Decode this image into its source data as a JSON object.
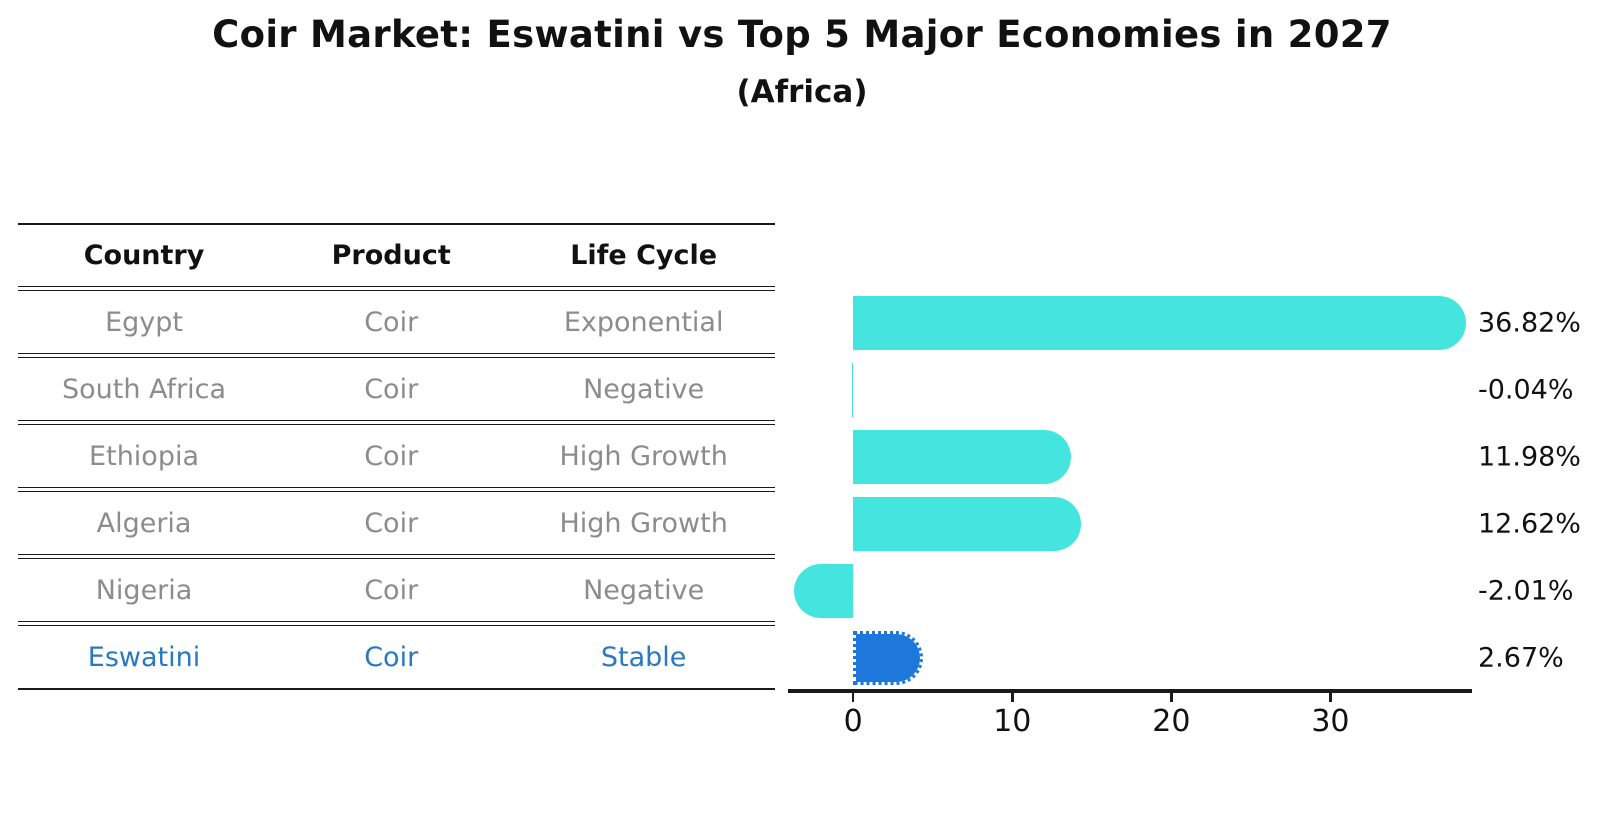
{
  "header": {
    "title": "Coir Market: Eswatini vs Top 5 Major Economies in 2027",
    "subtitle": "(Africa)"
  },
  "table": {
    "headers": [
      "Country",
      "Product",
      "Life Cycle"
    ],
    "rows": [
      {
        "country": "Egypt",
        "product": "Coir",
        "life_cycle": "Exponential",
        "highlight": false
      },
      {
        "country": "South Africa",
        "product": "Coir",
        "life_cycle": "Negative",
        "highlight": false
      },
      {
        "country": "Ethiopia",
        "product": "Coir",
        "life_cycle": "High Growth",
        "highlight": false
      },
      {
        "country": "Algeria",
        "product": "Coir",
        "life_cycle": "High Growth",
        "highlight": false
      },
      {
        "country": "Nigeria",
        "product": "Coir",
        "life_cycle": "Negative",
        "highlight": false
      },
      {
        "country": "Eswatini",
        "product": "Coir",
        "life_cycle": "Stable",
        "highlight": true
      }
    ]
  },
  "chart_data": {
    "type": "bar",
    "orientation": "horizontal",
    "title": "Coir Market: Eswatini vs Top 5 Major Economies in 2027",
    "subtitle": "(Africa)",
    "categories": [
      "Egypt",
      "South Africa",
      "Ethiopia",
      "Algeria",
      "Nigeria",
      "Eswatini"
    ],
    "values": [
      36.82,
      -0.04,
      11.98,
      12.62,
      -2.01,
      2.67
    ],
    "value_labels": [
      "36.82%",
      "-0.04%",
      "11.98%",
      "12.62%",
      "-2.01%",
      "2.67%"
    ],
    "xlabel": "",
    "ylabel": "",
    "xticks": [
      0,
      10,
      20,
      30
    ],
    "xlim": [
      -4.1,
      38.9
    ],
    "grid": false,
    "legend": false,
    "bar_color": "#45E5DF",
    "highlight_bar_color": "#1E78DC",
    "highlight_index": 5,
    "highlight_style": "dotted-border"
  },
  "colors": {
    "bar_cyan": "#45E5DF",
    "bar_blue": "#1E78DC",
    "highlight_text_blue": "#2979C1",
    "table_text_gray": "#8C8C8C",
    "text_black": "#111111",
    "line_black": "#1A1A1A",
    "background": "#FFFFFF"
  }
}
